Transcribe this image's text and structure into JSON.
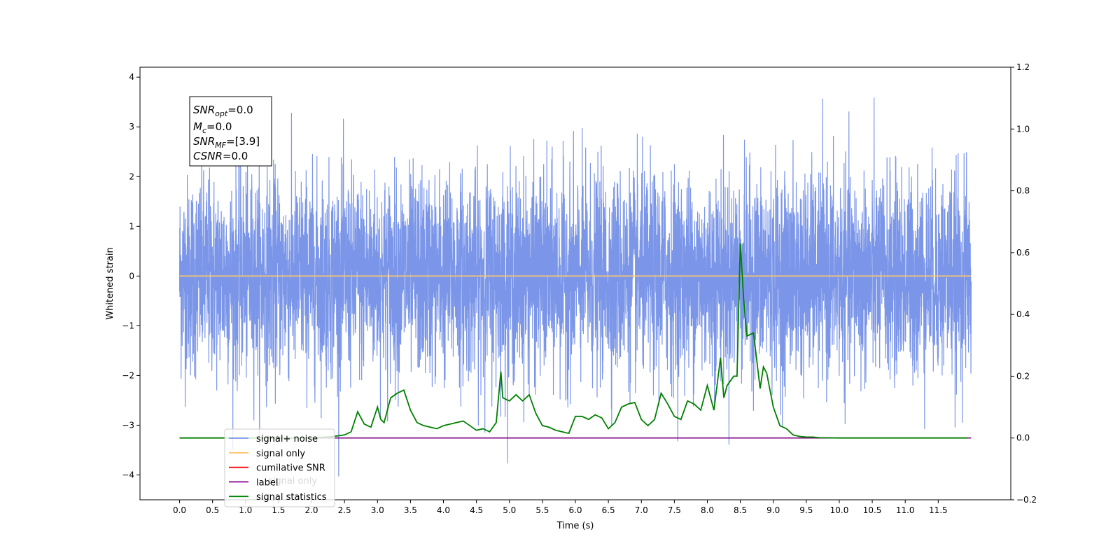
{
  "chart_data": {
    "type": "line",
    "title": "",
    "xlabel": "Time (s)",
    "ylabel": "Whitened strain",
    "xlim": [
      -0.6,
      12.6
    ],
    "ylim": [
      -4.5,
      4.2
    ],
    "y2lim": [
      -0.2,
      1.2
    ],
    "x_ticks": [
      "0.0",
      "0.5",
      "1.0",
      "1.5",
      "2.0",
      "2.5",
      "3.0",
      "3.5",
      "4.0",
      "4.5",
      "5.0",
      "5.5",
      "6.0",
      "6.5",
      "7.0",
      "7.5",
      "8.0",
      "8.5",
      "9.0",
      "9.5",
      "10.0",
      "10.5",
      "11.0",
      "11.5"
    ],
    "y_ticks": [
      "4",
      "3",
      "2",
      "1",
      "0",
      "−1",
      "−2",
      "−3",
      "−4"
    ],
    "y2_ticks": [
      "1.2",
      "1.0",
      "0.8",
      "0.6",
      "0.4",
      "0.2",
      "0.0",
      "−0.2"
    ],
    "annotation": {
      "snr_opt": {
        "base": "SNR",
        "sub": "opt",
        "value": "=0.0"
      },
      "mc": {
        "base": "M",
        "sub": "c",
        "value": "=0.0"
      },
      "snr_mf": {
        "base": "SNR",
        "sub": "MF",
        "value": "=[3.9]"
      },
      "csnr": {
        "base": "CSNR",
        "value": "=0.0"
      }
    },
    "legend": {
      "placement": "lower-left",
      "entries": [
        {
          "label": "signal+ noise",
          "color": "#7b96e8"
        },
        {
          "label": "signal only",
          "color": "#ffc56b"
        },
        {
          "label": "cumilative SNR",
          "color": "#ff0000"
        },
        {
          "label": "label",
          "color": "#800080"
        },
        {
          "label": "signal statistics",
          "color": "#008000"
        }
      ],
      "hidden_text": "signal only"
    },
    "series": [
      {
        "name": "signal+ noise",
        "axis": "left",
        "color": "#7b96e8",
        "x_range": [
          0,
          12
        ],
        "envelope": {
          "mean": 0.0,
          "std": 1.0,
          "min": -4.1,
          "max": 3.8
        }
      },
      {
        "name": "signal only",
        "axis": "left",
        "color": "#ffc56b",
        "x": [
          0,
          12
        ],
        "y": [
          0,
          0
        ]
      },
      {
        "name": "label",
        "axis": "right",
        "color": "#800080",
        "x": [
          0,
          12
        ],
        "y": [
          0,
          0
        ]
      },
      {
        "name": "signal statistics",
        "axis": "right",
        "color": "#008000",
        "x": [
          0,
          0.5,
          1.0,
          1.5,
          2.0,
          2.3,
          2.5,
          2.6,
          2.7,
          2.8,
          2.9,
          3.0,
          3.05,
          3.1,
          3.2,
          3.3,
          3.4,
          3.5,
          3.6,
          3.7,
          3.8,
          3.9,
          4.0,
          4.1,
          4.2,
          4.3,
          4.4,
          4.5,
          4.6,
          4.7,
          4.8,
          4.87,
          4.9,
          5.0,
          5.1,
          5.2,
          5.3,
          5.4,
          5.5,
          5.6,
          5.7,
          5.8,
          5.9,
          6.0,
          6.1,
          6.2,
          6.3,
          6.4,
          6.5,
          6.6,
          6.7,
          6.8,
          6.9,
          7.0,
          7.1,
          7.2,
          7.3,
          7.4,
          7.5,
          7.6,
          7.7,
          7.8,
          7.9,
          8.0,
          8.1,
          8.2,
          8.25,
          8.3,
          8.4,
          8.45,
          8.5,
          8.55,
          8.6,
          8.7,
          8.8,
          8.85,
          8.9,
          9.0,
          9.1,
          9.2,
          9.3,
          9.4,
          9.5,
          9.6,
          9.7,
          10.0,
          11.0,
          11.95
        ],
        "y": [
          0.0,
          0.0,
          0.0,
          0.0,
          0.0,
          0.004,
          0.01,
          0.02,
          0.085,
          0.045,
          0.035,
          0.1,
          0.06,
          0.05,
          0.13,
          0.145,
          0.155,
          0.09,
          0.05,
          0.04,
          0.035,
          0.03,
          0.04,
          0.045,
          0.05,
          0.055,
          0.04,
          0.025,
          0.03,
          0.02,
          0.05,
          0.215,
          0.13,
          0.12,
          0.14,
          0.12,
          0.14,
          0.08,
          0.04,
          0.035,
          0.025,
          0.02,
          0.015,
          0.07,
          0.07,
          0.06,
          0.075,
          0.065,
          0.03,
          0.05,
          0.1,
          0.11,
          0.115,
          0.06,
          0.04,
          0.06,
          0.145,
          0.11,
          0.07,
          0.06,
          0.12,
          0.11,
          0.09,
          0.17,
          0.09,
          0.26,
          0.13,
          0.17,
          0.2,
          0.2,
          0.63,
          0.45,
          0.33,
          0.34,
          0.16,
          0.23,
          0.21,
          0.1,
          0.04,
          0.03,
          0.01,
          0.005,
          0.003,
          0.003,
          0.001,
          0.0,
          0.0,
          0.0
        ]
      }
    ]
  }
}
